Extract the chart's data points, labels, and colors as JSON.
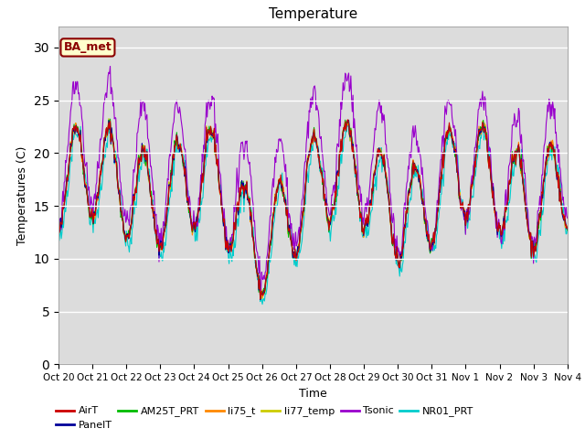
{
  "title": "Temperature",
  "xlabel": "Time",
  "ylabel": "Temperatures (C)",
  "ylim": [
    0,
    32
  ],
  "yticks": [
    0,
    5,
    10,
    15,
    20,
    25,
    30
  ],
  "background_color": "#dcdcdc",
  "legend_label": "BA_met",
  "legend_label_color": "#8b0000",
  "legend_box_color": "#ffffcc",
  "series_colors": {
    "AirT": "#cc0000",
    "PanelT": "#000099",
    "AM25T_PRT": "#00bb00",
    "li75_t": "#ff8800",
    "li77_temp": "#cccc00",
    "Tsonic": "#9900cc",
    "NR01_PRT": "#00cccc"
  },
  "x_tick_labels": [
    "Oct 20",
    "Oct 21",
    "Oct 22",
    "Oct 23",
    "Oct 24",
    "Oct 25",
    "Oct 26",
    "Oct 27",
    "Oct 28",
    "Oct 29",
    "Oct 30",
    "Oct 31",
    "Nov 1",
    "Nov 2",
    "Nov 3",
    "Nov 4"
  ],
  "figsize": [
    6.4,
    4.8
  ],
  "dpi": 100
}
